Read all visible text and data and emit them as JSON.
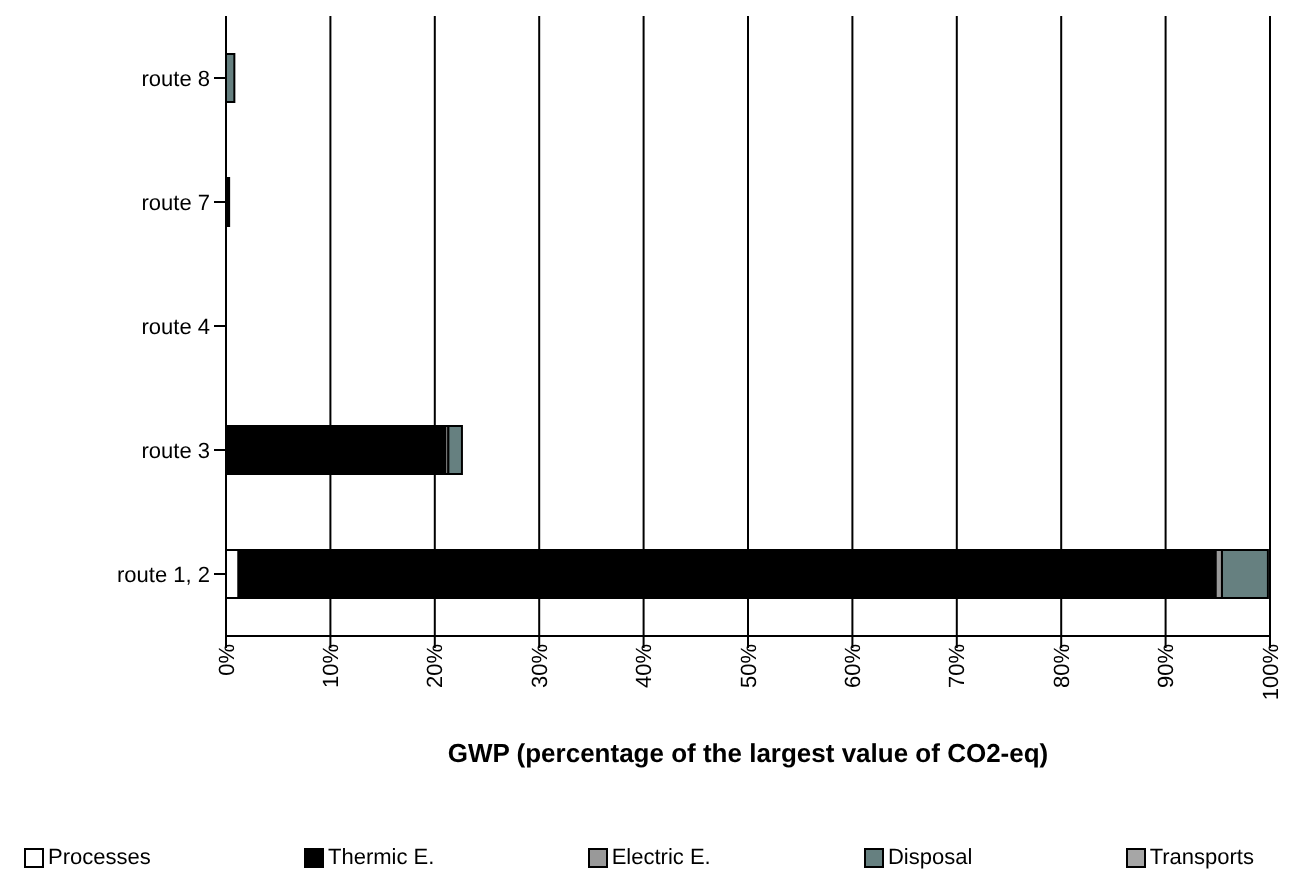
{
  "chart_data": {
    "type": "bar",
    "orientation": "horizontal",
    "stacked": true,
    "xlabel": "GWP (percentage of the largest value of CO2-eq)",
    "categories": [
      "route 8",
      "route 7",
      "route 4",
      "route 3",
      "route 1, 2"
    ],
    "series": [
      {
        "name": "Processes",
        "color": "#ffffff",
        "values": [
          0,
          0,
          0,
          0,
          1.2
        ]
      },
      {
        "name": "Thermic E.",
        "color": "#000000",
        "values": [
          0,
          0.3,
          0,
          21,
          93.6
        ]
      },
      {
        "name": "Electric E.",
        "color": "#999999",
        "values": [
          0,
          0,
          0,
          0.3,
          0.6
        ]
      },
      {
        "name": "Disposal",
        "color": "#668080",
        "values": [
          0.8,
          0,
          0,
          1.3,
          4.4
        ]
      },
      {
        "name": "Transports",
        "color": "#a6a6a6",
        "values": [
          0,
          0,
          0,
          0,
          null
        ]
      }
    ],
    "xlim": [
      0,
      100
    ],
    "xticks": [
      {
        "value": 0,
        "label": "0%"
      },
      {
        "value": 10,
        "label": "10%"
      },
      {
        "value": 20,
        "label": "20%"
      },
      {
        "value": 30,
        "label": "30%"
      },
      {
        "value": 40,
        "label": "40%"
      },
      {
        "value": 50,
        "label": "50%"
      },
      {
        "value": 60,
        "label": "60%"
      },
      {
        "value": 70,
        "label": "70%"
      },
      {
        "value": 80,
        "label": "80%"
      },
      {
        "value": 90,
        "label": "90%"
      },
      {
        "value": 100,
        "label": "100%"
      }
    ],
    "grid": "x",
    "legend": "bottom"
  }
}
